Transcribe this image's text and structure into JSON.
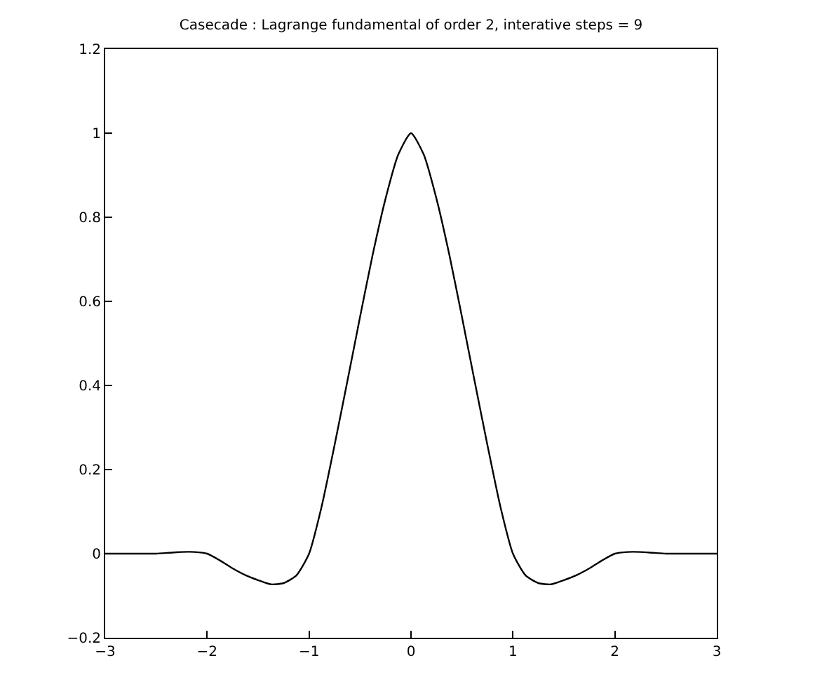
{
  "chart_data": {
    "type": "line",
    "title": "Casecade : Lagrange fundamental of order 2, interative steps = 9",
    "x": [
      -3,
      -2.875,
      -2.75,
      -2.625,
      -2.5,
      -2.375,
      -2.25,
      -2.125,
      -2,
      -1.875,
      -1.75,
      -1.625,
      -1.5,
      -1.375,
      -1.25,
      -1.125,
      -1,
      -0.875,
      -0.75,
      -0.625,
      -0.5,
      -0.375,
      -0.25,
      -0.125,
      0,
      0.125,
      0.25,
      0.375,
      0.5,
      0.625,
      0.75,
      0.875,
      1,
      1.125,
      1.25,
      1.375,
      1.5,
      1.625,
      1.75,
      1.875,
      2,
      2.125,
      2.25,
      2.375,
      2.5,
      2.625,
      2.75,
      2.875,
      3
    ],
    "series": [
      {
        "color": "#000000",
        "values": [
          0,
          0,
          0,
          0,
          0,
          0.002,
          0.004,
          0.004,
          0,
          -0.016,
          -0.035,
          -0.051,
          -0.063,
          -0.073,
          -0.07,
          -0.052,
          0,
          0.114,
          0.258,
          0.409,
          0.563,
          0.712,
          0.844,
          0.949,
          1,
          0.949,
          0.844,
          0.712,
          0.563,
          0.409,
          0.258,
          0.114,
          0,
          -0.052,
          -0.07,
          -0.073,
          -0.063,
          -0.051,
          -0.035,
          -0.016,
          0,
          0.004,
          0.004,
          0.002,
          0,
          0,
          0,
          0,
          0
        ]
      }
    ],
    "xlim": [
      -3,
      3
    ],
    "ylim": [
      -0.2,
      1.2
    ],
    "xticks": [
      {
        "value": -3,
        "label": "−3"
      },
      {
        "value": -2,
        "label": "−2"
      },
      {
        "value": -1,
        "label": "−1"
      },
      0,
      1,
      2,
      3
    ],
    "yticks": [
      {
        "value": -0.2,
        "label": "−0.2"
      },
      0,
      0.2,
      0.4,
      0.6,
      0.8,
      1,
      1.2
    ],
    "marker": "none",
    "line_style": "solid"
  }
}
